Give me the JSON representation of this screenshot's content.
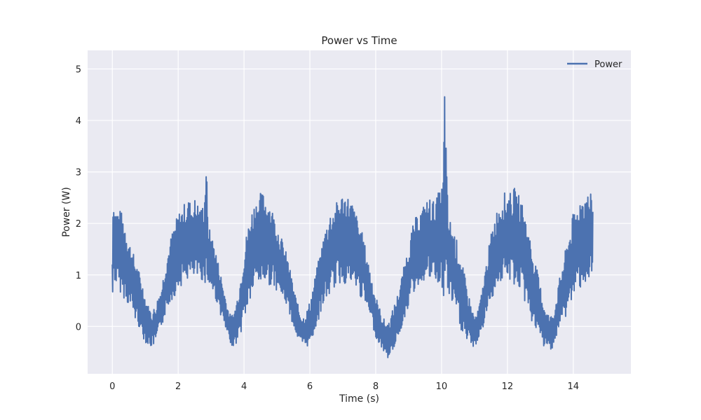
{
  "chart_data": {
    "type": "line",
    "title": "Power vs Time",
    "xlabel": "Time (s)",
    "ylabel": "Power (W)",
    "xlim": [
      -0.75,
      15.75
    ],
    "ylim": [
      -0.92,
      5.36
    ],
    "xticks": [
      0,
      2,
      4,
      6,
      8,
      10,
      12,
      14
    ],
    "yticks": [
      0,
      1,
      2,
      3,
      4,
      5
    ],
    "grid": true,
    "legend_position": "top-right",
    "colors": {
      "series": "#4c72b0",
      "plot_bg": "#eaeaf2",
      "grid": "#ffffff"
    },
    "series": [
      {
        "name": "Power",
        "x": [
          0.0,
          0.01,
          0.03,
          0.05,
          0.1,
          0.2,
          0.3,
          0.4,
          0.5,
          0.6,
          0.7,
          0.8,
          0.85,
          0.9,
          1.0,
          1.1,
          1.2,
          1.3,
          1.4,
          1.5,
          1.6,
          1.7,
          1.8,
          1.9,
          2.0,
          2.1,
          2.2,
          2.3,
          2.4,
          2.5,
          2.6,
          2.7,
          2.8,
          2.85,
          2.9,
          3.0,
          3.1,
          3.2,
          3.3,
          3.4,
          3.5,
          3.6,
          3.7,
          3.8,
          3.9,
          4.0,
          4.1,
          4.2,
          4.3,
          4.4,
          4.5,
          4.6,
          4.7,
          4.8,
          4.9,
          5.0,
          5.1,
          5.2,
          5.3,
          5.4,
          5.5,
          5.6,
          5.7,
          5.8,
          5.9,
          6.0,
          6.1,
          6.2,
          6.3,
          6.4,
          6.5,
          6.6,
          6.7,
          6.8,
          6.9,
          7.0,
          7.1,
          7.2,
          7.3,
          7.4,
          7.5,
          7.6,
          7.7,
          7.8,
          7.9,
          8.0,
          8.1,
          8.2,
          8.3,
          8.4,
          8.5,
          8.6,
          8.7,
          8.75,
          8.8,
          8.9,
          9.0,
          9.1,
          9.2,
          9.3,
          9.4,
          9.5,
          9.6,
          9.7,
          9.8,
          9.9,
          10.0,
          10.05,
          10.1,
          10.15,
          10.2,
          10.3,
          10.4,
          10.5,
          10.6,
          10.7,
          10.8,
          10.9,
          11.0,
          11.1,
          11.2,
          11.3,
          11.4,
          11.5,
          11.6,
          11.7,
          11.8,
          11.9,
          12.0,
          12.1,
          12.2,
          12.3,
          12.4,
          12.5,
          12.6,
          12.7,
          12.8,
          12.9,
          13.0,
          13.1,
          13.2,
          13.3,
          13.4,
          13.5,
          13.6,
          13.7,
          13.8,
          13.9,
          14.0,
          14.1,
          14.2,
          14.3,
          14.4,
          14.5,
          14.6,
          14.7,
          14.8,
          14.9,
          15.0
        ],
        "ymin": [
          -0.3,
          0.3,
          0.8,
          0.9,
          0.8,
          0.7,
          0.6,
          0.5,
          0.4,
          0.3,
          0.1,
          0.0,
          -0.1,
          -0.2,
          -0.3,
          -0.4,
          -0.4,
          -0.35,
          -0.2,
          0.0,
          0.2,
          0.4,
          0.5,
          0.6,
          0.7,
          0.8,
          0.85,
          0.9,
          0.9,
          0.9,
          0.9,
          0.9,
          0.85,
          0.8,
          0.8,
          0.7,
          0.6,
          0.4,
          0.2,
          0.0,
          -0.2,
          -0.35,
          -0.4,
          -0.3,
          -0.15,
          0.1,
          0.3,
          0.5,
          0.7,
          0.8,
          0.8,
          0.85,
          0.8,
          0.8,
          0.75,
          0.7,
          0.6,
          0.5,
          0.4,
          0.2,
          0.0,
          -0.2,
          -0.35,
          -0.4,
          -0.4,
          -0.35,
          -0.2,
          0.0,
          0.2,
          0.4,
          0.5,
          0.6,
          0.7,
          0.8,
          0.8,
          0.85,
          0.8,
          0.8,
          0.75,
          0.7,
          0.6,
          0.5,
          0.4,
          0.2,
          0.0,
          -0.2,
          -0.35,
          -0.45,
          -0.55,
          -0.65,
          -0.5,
          -0.35,
          -0.2,
          -0.1,
          0.0,
          0.2,
          0.4,
          0.55,
          0.7,
          0.8,
          0.85,
          0.9,
          0.9,
          0.85,
          0.85,
          0.8,
          0.8,
          0.1,
          0.8,
          0.7,
          0.6,
          0.45,
          0.3,
          0.1,
          -0.1,
          -0.25,
          -0.35,
          -0.4,
          -0.4,
          -0.3,
          -0.15,
          0.05,
          0.3,
          0.5,
          0.65,
          0.8,
          0.85,
          0.9,
          0.85,
          0.85,
          0.8,
          0.75,
          0.65,
          0.5,
          0.35,
          0.15,
          0.0,
          -0.15,
          -0.3,
          -0.4,
          -0.45,
          -0.45,
          -0.4,
          -0.2,
          0.0,
          0.1,
          0.2,
          0.4,
          0.55,
          0.65,
          0.75,
          0.8,
          0.85,
          0.85,
          0.8,
          0.8
        ],
        "ymax": [
          1.5,
          2.8,
          2.7,
          2.4,
          2.3,
          2.3,
          2.2,
          2.0,
          1.7,
          1.5,
          1.3,
          1.1,
          1.0,
          0.9,
          0.6,
          0.4,
          0.3,
          0.4,
          0.6,
          0.8,
          1.2,
          1.5,
          1.8,
          2.0,
          2.2,
          2.3,
          2.4,
          2.5,
          2.4,
          2.5,
          2.4,
          2.3,
          2.5,
          3.5,
          2.0,
          1.8,
          1.6,
          1.3,
          1.0,
          0.7,
          0.4,
          0.2,
          0.3,
          0.6,
          1.0,
          1.5,
          1.9,
          2.2,
          2.4,
          2.5,
          2.6,
          2.6,
          2.5,
          2.4,
          2.2,
          2.0,
          1.8,
          1.6,
          1.4,
          1.1,
          0.8,
          0.5,
          0.3,
          0.2,
          0.3,
          0.5,
          0.8,
          1.1,
          1.4,
          1.7,
          2.0,
          2.2,
          2.3,
          2.4,
          2.5,
          2.6,
          2.6,
          2.5,
          2.4,
          2.2,
          2.0,
          1.8,
          1.5,
          1.2,
          0.9,
          0.6,
          0.4,
          0.2,
          0.1,
          0.1,
          0.3,
          0.5,
          0.7,
          0.9,
          1.0,
          1.3,
          1.6,
          1.9,
          2.1,
          2.2,
          2.3,
          2.4,
          2.5,
          2.5,
          2.4,
          2.6,
          2.7,
          3.0,
          5.05,
          3.1,
          2.2,
          2.0,
          1.8,
          1.6,
          1.3,
          1.0,
          0.7,
          0.4,
          0.2,
          0.3,
          0.6,
          1.0,
          1.4,
          1.8,
          2.1,
          2.3,
          2.5,
          2.6,
          2.6,
          2.6,
          2.7,
          2.6,
          2.5,
          2.3,
          2.0,
          1.7,
          1.4,
          1.1,
          0.8,
          0.5,
          0.3,
          0.2,
          0.3,
          0.6,
          1.0,
          1.3,
          1.6,
          1.9,
          2.2,
          2.3,
          2.5,
          2.6,
          2.6,
          2.6,
          2.5
        ]
      }
    ]
  }
}
